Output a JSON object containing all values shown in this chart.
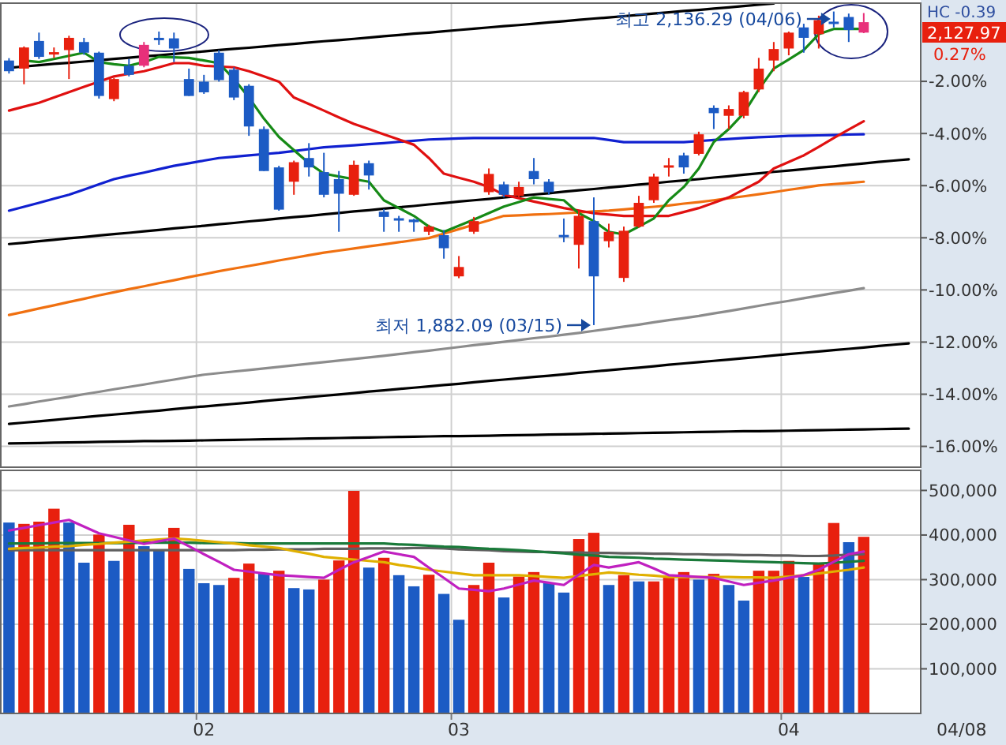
{
  "chart_data": [
    {
      "type": "candlestick",
      "categories": [
        null,
        null,
        null,
        null,
        null,
        null,
        null,
        null,
        null,
        null,
        null,
        null,
        null,
        "02",
        null,
        null,
        null,
        null,
        null,
        null,
        null,
        null,
        null,
        null,
        null,
        null,
        null,
        null,
        null,
        null,
        "03",
        null,
        null,
        null,
        null,
        null,
        null,
        null,
        null,
        null,
        null,
        null,
        null,
        null,
        null,
        null,
        null,
        null,
        null,
        null,
        null,
        null,
        "04",
        null,
        null,
        null,
        null,
        null,
        null,
        null,
        null
      ],
      "ohlc": [
        [
          -1.2,
          -1.11,
          -1.7,
          -1.61
        ],
        [
          -1.51,
          -0.66,
          -2.11,
          -0.7
        ],
        [
          -0.45,
          -0.13,
          -1.14,
          -1.06
        ],
        [
          -0.9,
          -0.7,
          -1.1,
          -0.88
        ],
        [
          -0.8,
          -0.25,
          -1.91,
          -0.33
        ],
        [
          -0.49,
          -0.33,
          -0.98,
          -0.9
        ],
        [
          -0.9,
          -0.86,
          -2.66,
          -2.56
        ],
        [
          -2.68,
          -1.87,
          -2.76,
          -1.91
        ],
        [
          -1.4,
          -1.14,
          -1.81,
          -1.75
        ],
        [
          -1.4,
          -0.49,
          -1.46,
          -0.6
        ],
        [
          -0.33,
          -0.09,
          -0.6,
          -0.35
        ],
        [
          -0.35,
          -0.13,
          -1.26,
          -0.74
        ],
        [
          -1.91,
          -1.51,
          -2.56,
          -2.56
        ],
        [
          -2.01,
          -1.75,
          -2.48,
          -2.42
        ],
        [
          -0.9,
          -0.8,
          -2.01,
          -1.95
        ],
        [
          -1.55,
          -1.46,
          -2.72,
          -2.62
        ],
        [
          -2.17,
          -2.11,
          -4.09,
          -3.73
        ],
        [
          -3.83,
          -3.73,
          -5.44,
          -5.44
        ],
        [
          -5.3,
          -5.24,
          -6.96,
          -6.92
        ],
        [
          -5.85,
          -5.04,
          -6.35,
          -5.1
        ],
        [
          -4.94,
          -4.37,
          -5.65,
          -5.3
        ],
        [
          -5.48,
          -4.74,
          -6.45,
          -6.35
        ],
        [
          -5.75,
          -5.44,
          -7.77,
          -6.31
        ],
        [
          -6.35,
          -5.04,
          -6.39,
          -5.2
        ],
        [
          -5.14,
          -5.04,
          -6.15,
          -5.61
        ],
        [
          -7.0,
          -6.9,
          -7.77,
          -7.2
        ],
        [
          -7.25,
          -7.16,
          -7.77,
          -7.3
        ],
        [
          -7.3,
          -7.27,
          -7.77,
          -7.4
        ],
        [
          -7.77,
          -7.5,
          -7.9,
          -7.57
        ],
        [
          -7.9,
          -7.7,
          -8.8,
          -8.4
        ],
        [
          -9.48,
          -8.7,
          -9.55,
          -9.12
        ],
        [
          -7.77,
          -7.2,
          -7.85,
          -7.36
        ],
        [
          -6.25,
          -5.34,
          -6.35,
          -5.55
        ],
        [
          -5.95,
          -5.85,
          -6.45,
          -6.35
        ],
        [
          -6.39,
          -5.85,
          -6.45,
          -6.05
        ],
        [
          -5.44,
          -4.94,
          -5.95,
          -5.75
        ],
        [
          -5.85,
          -5.75,
          -6.35,
          -6.25
        ],
        [
          -7.89,
          -7.26,
          -8.17,
          -7.93
        ],
        [
          -8.27,
          -6.96,
          -9.18,
          -7.16
        ],
        [
          -7.36,
          -6.45,
          -11.35,
          -9.48
        ],
        [
          -8.13,
          -7.46,
          -8.37,
          -7.77
        ],
        [
          -9.54,
          -7.57,
          -9.69,
          -7.73
        ],
        [
          -7.57,
          -6.39,
          -7.61,
          -6.66
        ],
        [
          -6.56,
          -5.54,
          -6.66,
          -5.65
        ],
        [
          -5.24,
          -4.94,
          -5.65,
          -5.22
        ],
        [
          -4.84,
          -4.74,
          -5.54,
          -5.3
        ],
        [
          -4.78,
          -3.93,
          -4.84,
          -4.03
        ],
        [
          -3.02,
          -2.92,
          -3.83,
          -3.22
        ],
        [
          -3.32,
          -2.92,
          -3.83,
          -3.06
        ],
        [
          -3.32,
          -2.36,
          -3.42,
          -2.41
        ],
        [
          -2.31,
          -1.1,
          -2.41,
          -1.51
        ],
        [
          -1.2,
          -0.49,
          -1.61,
          -0.76
        ],
        [
          -0.74,
          -0.09,
          -1.0,
          -0.13
        ],
        [
          0.07,
          0.21,
          -0.9,
          -0.33
        ],
        [
          -0.19,
          0.52,
          -0.74,
          0.35
        ],
        [
          0.29,
          0.68,
          0.07,
          0.25
        ],
        [
          0.47,
          0.6,
          -0.49,
          -0.03
        ],
        [
          -0.13,
          0.62,
          -0.15,
          0.27
        ],
        null,
        null,
        null
      ],
      "colors": [
        "#1c5bc4",
        "#e8200e",
        "#1c5bc4",
        "#e8200e",
        "#e8200e",
        "#1c5bc4",
        "#1c5bc4",
        "#e8200e",
        "#1c5bc4",
        "#e8307a",
        "#1c5bc4",
        "#1c5bc4",
        "#1c5bc4",
        "#1c5bc4",
        "#1c5bc4",
        "#1c5bc4",
        "#1c5bc4",
        "#1c5bc4",
        "#1c5bc4",
        "#e8200e",
        "#1c5bc4",
        "#1c5bc4",
        "#1c5bc4",
        "#e8200e",
        "#1c5bc4",
        "#1c5bc4",
        "#1c5bc4",
        "#1c5bc4",
        "#e8200e",
        "#1c5bc4",
        "#e8200e",
        "#e8200e",
        "#e8200e",
        "#1c5bc4",
        "#e8200e",
        "#1c5bc4",
        "#1c5bc4",
        "#1c5bc4",
        "#e8200e",
        "#1c5bc4",
        "#e8200e",
        "#e8200e",
        "#e8200e",
        "#e8200e",
        "#e8200e",
        "#1c5bc4",
        "#e8200e",
        "#1c5bc4",
        "#e8200e",
        "#e8200e",
        "#e8200e",
        "#e8200e",
        "#e8200e",
        "#1c5bc4",
        "#e8200e",
        "#1c5bc4",
        "#1c5bc4",
        "#e8307a",
        null,
        null,
        null
      ],
      "series": [
        {
          "type": "line",
          "color": "#000000",
          "values": [
            -1.48,
            -1.43,
            -1.38,
            -1.33,
            -1.29,
            -1.24,
            -1.19,
            -1.14,
            -1.09,
            -1.04,
            -1.0,
            -0.95,
            -0.9,
            -0.85,
            -0.8,
            -0.75,
            -0.71,
            -0.66,
            -0.61,
            -0.56,
            -0.51,
            -0.46,
            -0.42,
            -0.37,
            -0.32,
            -0.27,
            -0.22,
            -0.17,
            -0.13,
            -0.08,
            -0.03,
            0.02,
            0.07,
            0.12,
            0.16,
            0.21,
            0.26,
            0.31,
            0.36,
            0.41,
            0.45,
            0.5,
            0.55,
            0.6,
            0.65,
            0.7,
            0.74,
            0.79,
            0.84,
            0.89,
            0.94,
            0.99,
            null,
            null,
            null,
            null,
            null,
            null,
            null,
            null,
            null
          ]
        },
        {
          "type": "line",
          "color": "#000000",
          "values": [
            -8.24,
            -8.19,
            -8.13,
            -8.08,
            -8.02,
            -7.97,
            -7.91,
            -7.86,
            -7.81,
            -7.75,
            -7.7,
            -7.64,
            -7.59,
            -7.54,
            -7.48,
            -7.43,
            -7.37,
            -7.32,
            -7.26,
            -7.21,
            -7.16,
            -7.1,
            -7.05,
            -6.99,
            -6.94,
            -6.88,
            -6.83,
            -6.78,
            -6.72,
            -6.67,
            -6.61,
            -6.56,
            -6.51,
            -6.45,
            -6.4,
            -6.34,
            -6.29,
            -6.23,
            -6.18,
            -6.13,
            -6.07,
            -6.02,
            -5.96,
            -5.91,
            -5.85,
            -5.8,
            -5.75,
            -5.69,
            -5.64,
            -5.58,
            -5.53,
            -5.47,
            -5.42,
            -5.37,
            -5.31,
            -5.26,
            -5.2,
            -5.15,
            -5.09,
            -5.04,
            -4.99
          ]
        },
        {
          "type": "line",
          "color": "#000000",
          "values": [
            -15.14,
            -15.09,
            -15.04,
            -14.99,
            -14.93,
            -14.88,
            -14.83,
            -14.78,
            -14.73,
            -14.68,
            -14.63,
            -14.57,
            -14.52,
            -14.47,
            -14.42,
            -14.37,
            -14.32,
            -14.26,
            -14.21,
            -14.16,
            -14.11,
            -14.06,
            -14.01,
            -13.96,
            -13.9,
            -13.85,
            -13.8,
            -13.75,
            -13.7,
            -13.65,
            -13.6,
            -13.54,
            -13.49,
            -13.44,
            -13.39,
            -13.34,
            -13.29,
            -13.24,
            -13.18,
            -13.13,
            -13.08,
            -13.03,
            -12.98,
            -12.93,
            -12.87,
            -12.82,
            -12.77,
            -12.72,
            -12.67,
            -12.62,
            -12.57,
            -12.51,
            -12.46,
            -12.41,
            -12.36,
            -12.31,
            -12.26,
            -12.21,
            -12.15,
            -12.1,
            -12.05
          ]
        },
        {
          "type": "line",
          "color": "#000000",
          "values": [
            -15.89,
            -15.88,
            -15.87,
            -15.86,
            -15.85,
            -15.84,
            -15.83,
            -15.82,
            -15.81,
            -15.8,
            -15.8,
            -15.79,
            -15.78,
            -15.77,
            -15.76,
            -15.75,
            -15.74,
            -15.73,
            -15.72,
            -15.71,
            -15.7,
            -15.69,
            -15.68,
            -15.67,
            -15.66,
            -15.65,
            -15.64,
            -15.63,
            -15.62,
            -15.61,
            -15.61,
            -15.6,
            -15.59,
            -15.58,
            -15.57,
            -15.56,
            -15.55,
            -15.54,
            -15.53,
            -15.52,
            -15.51,
            -15.5,
            -15.49,
            -15.48,
            -15.47,
            -15.46,
            -15.45,
            -15.44,
            -15.43,
            -15.42,
            -15.42,
            -15.41,
            -15.4,
            -15.39,
            -15.38,
            -15.37,
            -15.36,
            -15.35,
            -15.34,
            -15.33,
            -15.32
          ]
        },
        {
          "type": "line",
          "color": "#8c8c8c",
          "values": [
            -14.47,
            -14.38,
            -14.28,
            -14.19,
            -14.1,
            -14.0,
            -13.91,
            -13.81,
            -13.72,
            -13.63,
            -13.53,
            -13.44,
            -13.34,
            -13.25,
            -13.19,
            -13.13,
            -13.07,
            -13.01,
            -12.95,
            -12.89,
            -12.83,
            -12.77,
            -12.71,
            -12.65,
            -12.59,
            -12.53,
            -12.46,
            -12.39,
            -12.33,
            -12.26,
            -12.19,
            -12.12,
            -12.06,
            -11.99,
            -11.92,
            -11.85,
            -11.79,
            -11.72,
            -11.65,
            -11.57,
            -11.49,
            -11.41,
            -11.33,
            -11.24,
            -11.16,
            -11.08,
            -11.0,
            -10.9,
            -10.81,
            -10.71,
            -10.61,
            -10.51,
            -10.42,
            -10.32,
            -10.22,
            -10.12,
            -10.03,
            -9.93,
            null,
            null,
            null
          ]
        },
        {
          "type": "line",
          "color": "#f07010",
          "values": [
            -10.96,
            -10.84,
            -10.71,
            -10.59,
            -10.46,
            -10.34,
            -10.21,
            -10.09,
            -9.97,
            -9.86,
            -9.74,
            -9.63,
            -9.51,
            -9.4,
            -9.28,
            -9.18,
            -9.08,
            -8.98,
            -8.87,
            -8.77,
            -8.67,
            -8.57,
            -8.49,
            -8.41,
            -8.33,
            -8.25,
            -8.17,
            -8.09,
            -8.01,
            -7.84,
            -7.67,
            -7.5,
            -7.33,
            -7.16,
            -7.14,
            -7.11,
            -7.09,
            -7.06,
            -7.03,
            -6.99,
            -6.96,
            -6.91,
            -6.86,
            -6.81,
            -6.76,
            -6.69,
            -6.63,
            -6.56,
            -6.48,
            -6.41,
            -6.33,
            -6.25,
            -6.16,
            -6.08,
            -5.99,
            -5.94,
            -5.9,
            -5.85,
            null,
            null,
            null
          ]
        },
        {
          "type": "line",
          "color": "#1020d0",
          "values": [
            -6.96,
            -6.81,
            -6.66,
            -6.5,
            -6.35,
            -6.15,
            -5.95,
            -5.75,
            -5.62,
            -5.5,
            -5.37,
            -5.24,
            -5.14,
            -5.04,
            -4.94,
            -4.89,
            -4.84,
            -4.79,
            -4.74,
            -4.67,
            -4.6,
            -4.53,
            -4.49,
            -4.45,
            -4.41,
            -4.37,
            -4.32,
            -4.28,
            -4.23,
            -4.21,
            -4.19,
            -4.17,
            -4.17,
            -4.17,
            -4.17,
            -4.17,
            -4.17,
            -4.17,
            -4.17,
            -4.17,
            -4.25,
            -4.33,
            -4.33,
            -4.33,
            -4.33,
            -4.33,
            -4.29,
            -4.25,
            -4.21,
            -4.17,
            -4.14,
            -4.12,
            -4.09,
            -4.08,
            -4.07,
            -4.06,
            -4.04,
            -4.03,
            null,
            null,
            null
          ]
        },
        {
          "type": "line",
          "color": "#e01010",
          "values": [
            -3.12,
            -2.97,
            -2.82,
            -2.62,
            -2.41,
            -2.21,
            -2.01,
            -1.81,
            -1.71,
            -1.61,
            -1.46,
            -1.3,
            -1.3,
            -1.4,
            -1.43,
            -1.46,
            -1.61,
            -1.81,
            -2.01,
            -2.62,
            -2.87,
            -3.12,
            -3.38,
            -3.63,
            -3.83,
            -4.03,
            -4.23,
            -4.43,
            -4.94,
            -5.54,
            -5.7,
            -5.85,
            -6.05,
            -6.35,
            -6.48,
            -6.61,
            -6.73,
            -6.86,
            -6.96,
            -7.06,
            -7.11,
            -7.16,
            -7.16,
            -7.16,
            -7.16,
            -7.01,
            -6.86,
            -6.66,
            -6.45,
            -6.15,
            -5.85,
            -5.34,
            -5.09,
            -4.84,
            -4.51,
            -4.17,
            -3.85,
            -3.53,
            null,
            null,
            null
          ]
        },
        {
          "type": "line",
          "color": "#168a16",
          "values": [
            null,
            -1.2,
            -1.26,
            -1.14,
            -1.02,
            -0.9,
            -1.26,
            -1.34,
            -1.4,
            -1.26,
            -1.06,
            -1.08,
            -1.1,
            -1.2,
            -1.3,
            -1.91,
            -2.62,
            -3.43,
            -4.13,
            -4.64,
            -5.14,
            -5.54,
            -5.65,
            -5.75,
            -5.85,
            -6.56,
            -6.86,
            -7.16,
            -7.57,
            -7.77,
            -7.54,
            -7.3,
            -7.05,
            -6.8,
            -6.63,
            -6.45,
            -6.51,
            -6.56,
            -7.06,
            -7.36,
            -7.77,
            -7.87,
            -7.57,
            -7.26,
            -6.56,
            -6.05,
            -5.34,
            -4.33,
            -3.83,
            -3.22,
            -2.31,
            -1.51,
            -1.16,
            -0.8,
            -0.19,
            0.01,
            0.01,
            0.01,
            null,
            null,
            null
          ]
        }
      ],
      "ylim": [
        -16.8,
        1.0
      ],
      "yticks": [
        {
          "value": -2,
          "label": "-2.00%"
        },
        {
          "value": -4,
          "label": "-4.00%"
        },
        {
          "value": -6,
          "label": "-6.00%"
        },
        {
          "value": -8,
          "label": "-8.00%"
        },
        {
          "value": -10,
          "label": "-10.00%"
        },
        {
          "value": -12,
          "label": "-12.00%"
        },
        {
          "value": -14,
          "label": "-14.00%"
        },
        {
          "value": -16,
          "label": "-16.00%"
        }
      ],
      "grid": true,
      "tick_labels": "y",
      "annotations": [
        "HC -0.39",
        "2,127.97",
        "0.27%",
        {
          "text": "최고 2,136.29 (04/06)",
          "y": 0.68
        },
        "최저 1,882.09 (03/15)"
      ]
    },
    {
      "type": "bar",
      "categories": [
        null,
        null,
        null,
        null,
        null,
        null,
        null,
        null,
        null,
        null,
        null,
        null,
        null,
        "02",
        null,
        null,
        null,
        null,
        null,
        null,
        null,
        null,
        null,
        null,
        null,
        null,
        null,
        null,
        null,
        null,
        "03",
        null,
        null,
        null,
        null,
        null,
        null,
        null,
        null,
        null,
        null,
        null,
        null,
        null,
        null,
        null,
        null,
        null,
        null,
        null,
        null,
        null,
        "04",
        null,
        null,
        null,
        null,
        null,
        null,
        null,
        null
      ],
      "series": [
        {
          "type": "bar",
          "values": [
            428000,
            425000,
            430000,
            459000,
            428000,
            338000,
            401000,
            342000,
            423000,
            375000,
            365000,
            416000,
            324000,
            292000,
            288000,
            304000,
            336000,
            313000,
            320000,
            281000,
            278000,
            300000,
            343000,
            499000,
            327000,
            349000,
            310000,
            285000,
            311000,
            268000,
            210000,
            288000,
            338000,
            260000,
            307000,
            317000,
            292000,
            271000,
            391000,
            405000,
            288000,
            310000,
            296000,
            296000,
            306000,
            317000,
            300000,
            313000,
            288000,
            253000,
            320000,
            320000,
            342000,
            306000,
            335000,
            427000,
            384000,
            396000,
            null,
            null,
            null
          ],
          "colors": [
            "#1c5bc4",
            "#e8200e",
            "#e8200e",
            "#e8200e",
            "#1c5bc4",
            "#1c5bc4",
            "#e8200e",
            "#1c5bc4",
            "#e8200e",
            "#1c5bc4",
            "#1c5bc4",
            "#e8200e",
            "#1c5bc4",
            "#1c5bc4",
            "#1c5bc4",
            "#e8200e",
            "#e8200e",
            "#1c5bc4",
            "#e8200e",
            "#1c5bc4",
            "#1c5bc4",
            "#e8200e",
            "#e8200e",
            "#e8200e",
            "#1c5bc4",
            "#e8200e",
            "#1c5bc4",
            "#1c5bc4",
            "#e8200e",
            "#1c5bc4",
            "#1c5bc4",
            "#e8200e",
            "#e8200e",
            "#1c5bc4",
            "#e8200e",
            "#e8200e",
            "#1c5bc4",
            "#1c5bc4",
            "#e8200e",
            "#e8200e",
            "#1c5bc4",
            "#e8200e",
            "#1c5bc4",
            "#e8200e",
            "#e8200e",
            "#e8200e",
            "#1c5bc4",
            "#e8200e",
            "#1c5bc4",
            "#1c5bc4",
            "#e8200e",
            "#e8200e",
            "#e8200e",
            "#1c5bc4",
            "#e8200e",
            "#e8200e",
            "#1c5bc4",
            "#e8200e",
            null,
            null,
            null
          ]
        },
        {
          "type": "line",
          "color": "#5f5f5f",
          "values": [
            366000,
            366000,
            366000,
            366000,
            366000,
            366000,
            366000,
            366000,
            366000,
            366000,
            366000,
            366000,
            366000,
            366000,
            366000,
            366000,
            367000,
            367000,
            368000,
            368000,
            368000,
            369000,
            369000,
            369000,
            370000,
            370000,
            370000,
            371000,
            371000,
            370000,
            368000,
            367000,
            366000,
            364000,
            363000,
            362000,
            362000,
            361000,
            361000,
            360000,
            360000,
            359000,
            359000,
            358000,
            358000,
            357000,
            357000,
            356000,
            356000,
            355000,
            355000,
            354000,
            354000,
            353000,
            353000,
            354000,
            356000,
            357000,
            null,
            null,
            null
          ]
        },
        {
          "type": "line",
          "color": "#1a7a3a",
          "values": [
            381000,
            381000,
            381000,
            382000,
            382000,
            382000,
            382000,
            382000,
            382000,
            383000,
            383000,
            383000,
            383000,
            382000,
            382000,
            382000,
            381000,
            381000,
            381000,
            381000,
            381000,
            381000,
            381000,
            381000,
            381000,
            381000,
            379000,
            378000,
            376000,
            374000,
            373000,
            371000,
            369000,
            368000,
            366000,
            364000,
            361000,
            359000,
            356000,
            354000,
            351000,
            350000,
            349000,
            347000,
            346000,
            345000,
            344000,
            343000,
            342000,
            341000,
            340000,
            339000,
            338000,
            337000,
            336000,
            338000,
            340000,
            342000,
            null,
            null,
            null
          ]
        },
        {
          "type": "line",
          "color": "#e0b000",
          "values": [
            369000,
            371000,
            372000,
            374000,
            375000,
            378000,
            380000,
            383000,
            385000,
            388000,
            390000,
            392000,
            390000,
            387000,
            384000,
            381000,
            377000,
            374000,
            371000,
            364000,
            358000,
            351000,
            348000,
            345000,
            342000,
            339000,
            333000,
            328000,
            322000,
            318000,
            314000,
            310000,
            310000,
            310000,
            310000,
            308000,
            306000,
            304000,
            308000,
            312000,
            316000,
            314000,
            311000,
            309000,
            306000,
            306000,
            306000,
            306000,
            306000,
            305000,
            305000,
            304000,
            307000,
            310000,
            314000,
            318000,
            322000,
            327000,
            null,
            null,
            null
          ]
        },
        {
          "type": "line",
          "color": "#c020c0",
          "values": [
            410000,
            416000,
            422000,
            428000,
            434000,
            419000,
            404000,
            396000,
            388000,
            380000,
            386000,
            392000,
            375000,
            357000,
            340000,
            322000,
            318000,
            314000,
            310000,
            308000,
            306000,
            304000,
            322000,
            339000,
            351000,
            363000,
            357000,
            351000,
            327000,
            304000,
            280000,
            277000,
            274000,
            280000,
            289000,
            298000,
            293000,
            288000,
            311000,
            333000,
            327000,
            333000,
            339000,
            325000,
            310000,
            308000,
            306000,
            304000,
            296000,
            288000,
            293000,
            298000,
            304000,
            310000,
            322000,
            340000,
            357000,
            363000,
            null,
            null,
            null
          ]
        }
      ],
      "ylim": [
        0,
        545000
      ],
      "yticks": [
        {
          "value": 100000,
          "label": "100,000"
        },
        {
          "value": 200000,
          "label": "200,000"
        },
        {
          "value": 300000,
          "label": "300,000"
        },
        {
          "value": 400000,
          "label": "400,000"
        },
        {
          "value": 500000,
          "label": "500,000"
        }
      ],
      "grid": true,
      "annotations": [
        "04/08"
      ]
    }
  ]
}
